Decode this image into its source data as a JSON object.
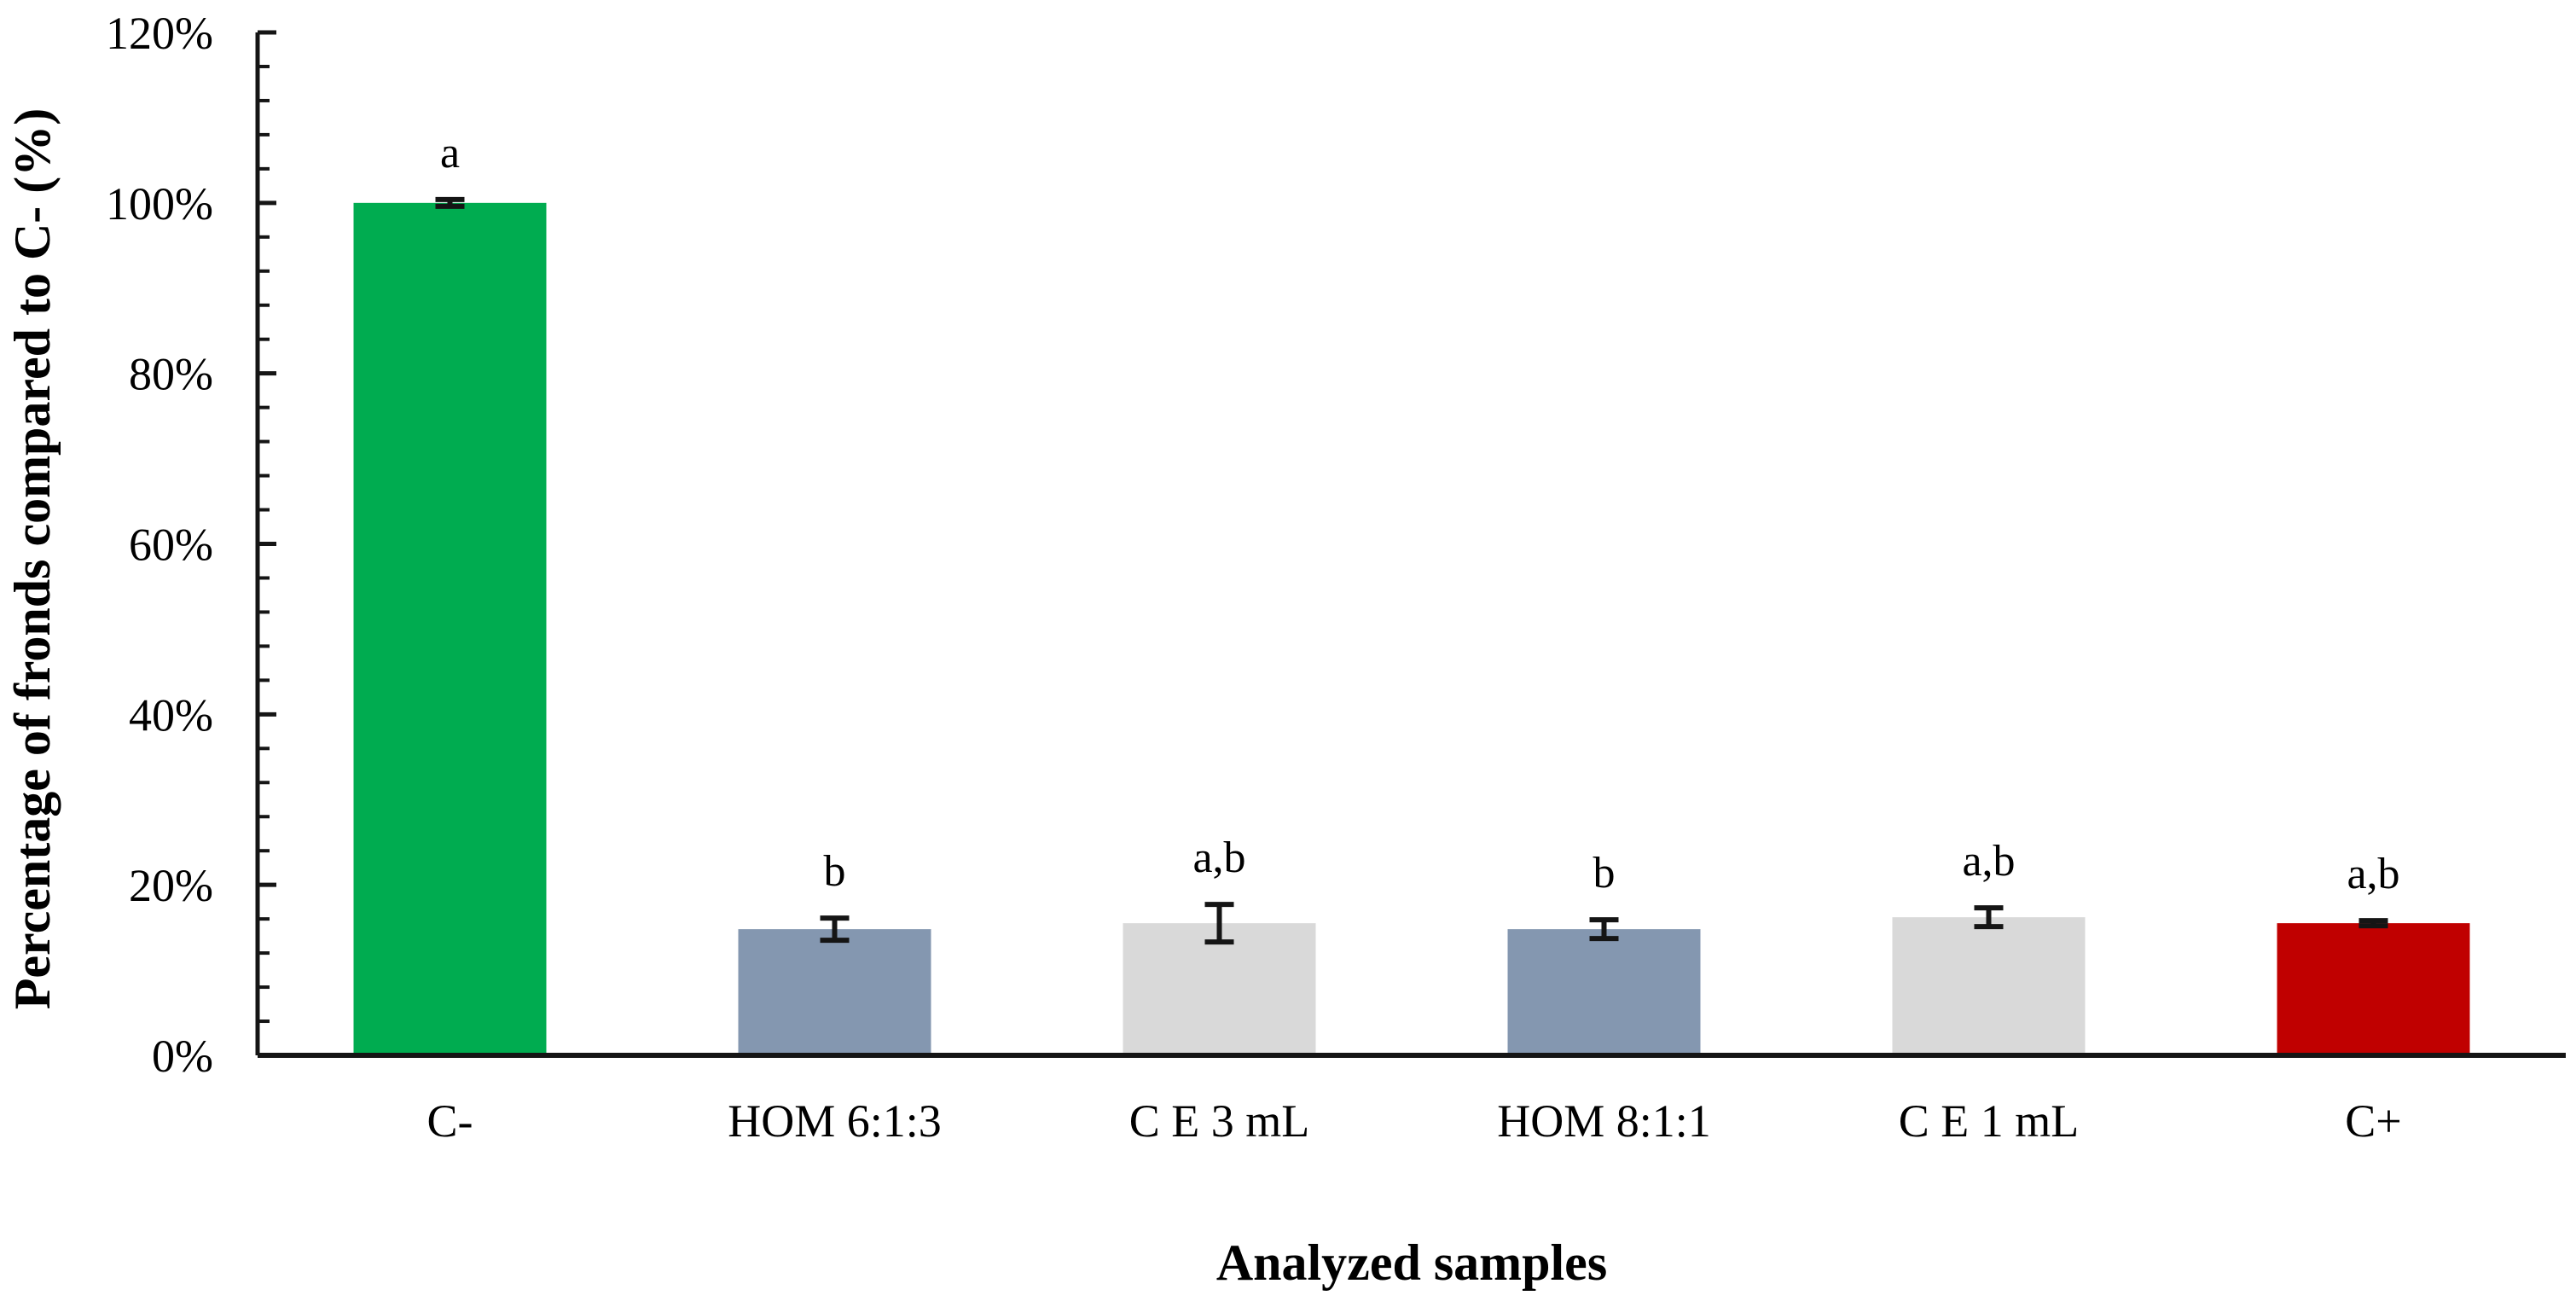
{
  "chart_data": {
    "type": "bar",
    "title": "",
    "xlabel": "Analyzed samples",
    "ylabel": "Percentage of fronds compared to C- (%)",
    "categories": [
      "C-",
      "HOM 6:1:3",
      "C E 3 mL",
      "HOM 8:1:1",
      "C E 1 mL",
      "C+"
    ],
    "values": [
      100,
      14.8,
      15.5,
      14.8,
      16.2,
      15.5
    ],
    "error_bars": [
      0.4,
      1.3,
      2.2,
      1.1,
      1.1,
      0.3
    ],
    "significance_labels": [
      "a",
      "b",
      "a,b",
      "b",
      "a,b",
      "a,b"
    ],
    "bar_colors": [
      "#00AC50",
      "#8497B0",
      "#D9D9D9",
      "#8497B0",
      "#D9D9D9",
      "#C00000"
    ],
    "axis_color": "#151515",
    "error_bar_color": "#151515",
    "ylim": [
      0,
      120
    ],
    "y_major_step": 20,
    "y_minor_step": 4,
    "y_tick_labels": [
      "0%",
      "20%",
      "40%",
      "60%",
      "80%",
      "100%",
      "120%"
    ],
    "grid": "off",
    "legend": "none"
  }
}
